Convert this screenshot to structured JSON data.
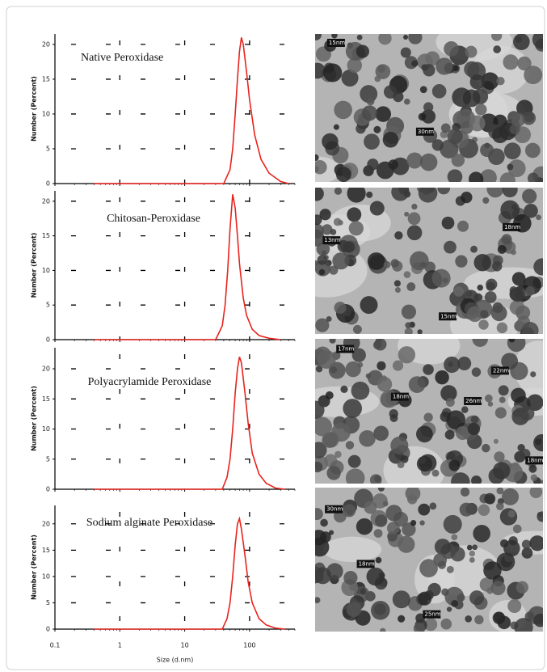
{
  "chart_data": [
    {
      "type": "line",
      "title": "Native Peroxidase",
      "ylabel": "Number (Percent)",
      "log_x": true,
      "grid": true,
      "xtick_labels": false,
      "xlim": [
        0.1,
        500
      ],
      "ylim": [
        0,
        21.5
      ],
      "xticks": [
        0.1,
        1,
        10,
        100
      ],
      "yticks": [
        0,
        5,
        10,
        15,
        20
      ],
      "series": [
        {
          "name": "Native Peroxidase",
          "color": "#e8231d",
          "x": [
            0.4,
            40,
            50,
            55,
            60,
            65,
            70,
            75,
            80,
            90,
            100,
            120,
            150,
            200,
            300,
            400
          ],
          "values": [
            0,
            0,
            2,
            5,
            10,
            15,
            19,
            21,
            20,
            16,
            12,
            7,
            3.5,
            1.5,
            0.3,
            0
          ]
        }
      ]
    },
    {
      "type": "line",
      "title": "Chitosan-Peroxidase",
      "ylabel": "Number (Percent)",
      "log_x": true,
      "grid": true,
      "xtick_labels": false,
      "xlim": [
        0.1,
        500
      ],
      "ylim": [
        0,
        21.5
      ],
      "xticks": [
        0.1,
        1,
        10,
        100
      ],
      "yticks": [
        0,
        5,
        10,
        15,
        20
      ],
      "series": [
        {
          "name": "Chitosan-Peroxidase",
          "color": "#e8231d",
          "x": [
            0.4,
            30,
            38,
            42,
            46,
            50,
            55,
            60,
            65,
            70,
            80,
            90,
            110,
            140,
            200,
            300
          ],
          "values": [
            0,
            0,
            2,
            5,
            10,
            16,
            21,
            19,
            15,
            11,
            6,
            3.5,
            1.5,
            0.6,
            0.2,
            0
          ]
        }
      ]
    },
    {
      "type": "line",
      "title": "Polyacrylamide Peroxidase",
      "ylabel": "Number (Percent)",
      "log_x": true,
      "grid": true,
      "xtick_labels": false,
      "xlim": [
        0.1,
        500
      ],
      "ylim": [
        0,
        23.5
      ],
      "xticks": [
        0.1,
        1,
        10,
        100
      ],
      "yticks": [
        0,
        5,
        10,
        15,
        20
      ],
      "series": [
        {
          "name": "Polyacrylamide Peroxidase",
          "color": "#e8231d",
          "x": [
            0.4,
            38,
            45,
            50,
            55,
            60,
            65,
            70,
            75,
            85,
            95,
            110,
            140,
            180,
            250,
            350
          ],
          "values": [
            0,
            0,
            2,
            5,
            10,
            16,
            20,
            22,
            21,
            16,
            11,
            6,
            2.5,
            1,
            0.2,
            0
          ]
        }
      ]
    },
    {
      "type": "line",
      "title": "Sodium alginate Peroxidase",
      "ylabel": "Number (Percent)",
      "xlabel": "Size (d.nm)",
      "log_x": true,
      "grid": true,
      "xtick_labels": true,
      "xlim": [
        0.1,
        500
      ],
      "ylim": [
        0,
        23.5
      ],
      "xticks": [
        0.1,
        1,
        10,
        100
      ],
      "yticks": [
        0,
        5,
        10,
        15,
        20
      ],
      "series": [
        {
          "name": "Sodium alginate Peroxidase",
          "color": "#e8231d",
          "x": [
            0.4,
            38,
            45,
            50,
            55,
            60,
            65,
            70,
            75,
            85,
            95,
            110,
            140,
            180,
            250,
            350
          ],
          "values": [
            0,
            0,
            2,
            5,
            10,
            16,
            20,
            21,
            19,
            14,
            9,
            5,
            2,
            0.8,
            0.2,
            0
          ]
        }
      ]
    }
  ],
  "micrographs": [
    {
      "labels": [
        "15nm",
        "30nm"
      ]
    },
    {
      "labels": [
        "18nm",
        "13nm",
        "15nm"
      ]
    },
    {
      "labels": [
        "17nm",
        "22nm",
        "18nm",
        "26nm",
        "18nm"
      ]
    },
    {
      "labels": [
        "30nm",
        "18nm",
        "25nm"
      ]
    }
  ]
}
